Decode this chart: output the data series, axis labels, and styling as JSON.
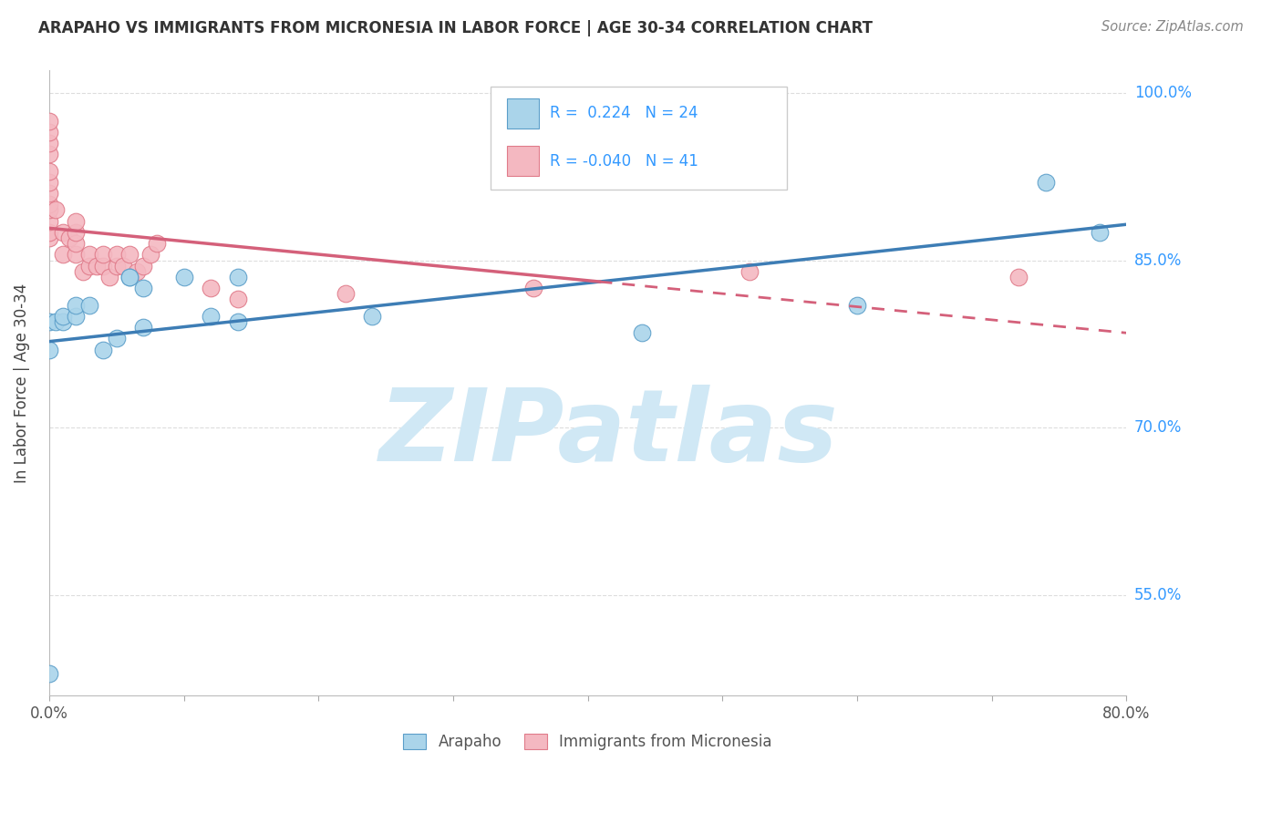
{
  "title": "ARAPAHO VS IMMIGRANTS FROM MICRONESIA IN LABOR FORCE | AGE 30-34 CORRELATION CHART",
  "source": "Source: ZipAtlas.com",
  "ylabel": "In Labor Force | Age 30-34",
  "x_min": 0.0,
  "x_max": 0.8,
  "y_min": 0.46,
  "y_max": 1.02,
  "x_tick_positions": [
    0.0,
    0.1,
    0.2,
    0.3,
    0.4,
    0.5,
    0.6,
    0.7,
    0.8
  ],
  "x_tick_labels": [
    "0.0%",
    "",
    "",
    "",
    "",
    "",
    "",
    "",
    "80.0%"
  ],
  "y_ticks": [
    0.55,
    0.7,
    0.85,
    1.0
  ],
  "y_tick_labels": [
    "55.0%",
    "70.0%",
    "85.0%",
    "100.0%"
  ],
  "arapaho_R": 0.224,
  "arapaho_N": 24,
  "micronesia_R": -0.04,
  "micronesia_N": 41,
  "arapaho_color": "#aad4ea",
  "micronesia_color": "#f4b8c1",
  "arapaho_edge_color": "#5b9ec9",
  "micronesia_edge_color": "#e07b8a",
  "arapaho_line_color": "#3d7db5",
  "micronesia_line_color": "#d4607a",
  "watermark": "ZIPatlas",
  "watermark_color": "#d0e8f5",
  "arapaho_x": [
    0.0,
    0.0,
    0.0,
    0.005,
    0.01,
    0.01,
    0.02,
    0.02,
    0.03,
    0.04,
    0.05,
    0.06,
    0.06,
    0.07,
    0.07,
    0.1,
    0.12,
    0.14,
    0.14,
    0.24,
    0.44,
    0.6,
    0.74,
    0.78
  ],
  "arapaho_y": [
    0.48,
    0.77,
    0.795,
    0.795,
    0.795,
    0.8,
    0.8,
    0.81,
    0.81,
    0.77,
    0.78,
    0.835,
    0.835,
    0.79,
    0.825,
    0.835,
    0.8,
    0.795,
    0.835,
    0.8,
    0.785,
    0.81,
    0.92,
    0.875
  ],
  "micronesia_x": [
    0.0,
    0.0,
    0.0,
    0.0,
    0.0,
    0.0,
    0.0,
    0.0,
    0.0,
    0.0,
    0.0,
    0.0,
    0.005,
    0.01,
    0.01,
    0.015,
    0.02,
    0.02,
    0.02,
    0.02,
    0.025,
    0.03,
    0.03,
    0.035,
    0.04,
    0.04,
    0.045,
    0.05,
    0.05,
    0.055,
    0.06,
    0.065,
    0.07,
    0.075,
    0.08,
    0.12,
    0.14,
    0.22,
    0.36,
    0.52,
    0.72
  ],
  "micronesia_y": [
    0.87,
    0.875,
    0.885,
    0.895,
    0.9,
    0.91,
    0.92,
    0.93,
    0.945,
    0.955,
    0.965,
    0.975,
    0.895,
    0.855,
    0.875,
    0.87,
    0.855,
    0.865,
    0.875,
    0.885,
    0.84,
    0.845,
    0.855,
    0.845,
    0.845,
    0.855,
    0.835,
    0.845,
    0.855,
    0.845,
    0.855,
    0.84,
    0.845,
    0.855,
    0.865,
    0.825,
    0.815,
    0.82,
    0.825,
    0.84,
    0.835
  ]
}
